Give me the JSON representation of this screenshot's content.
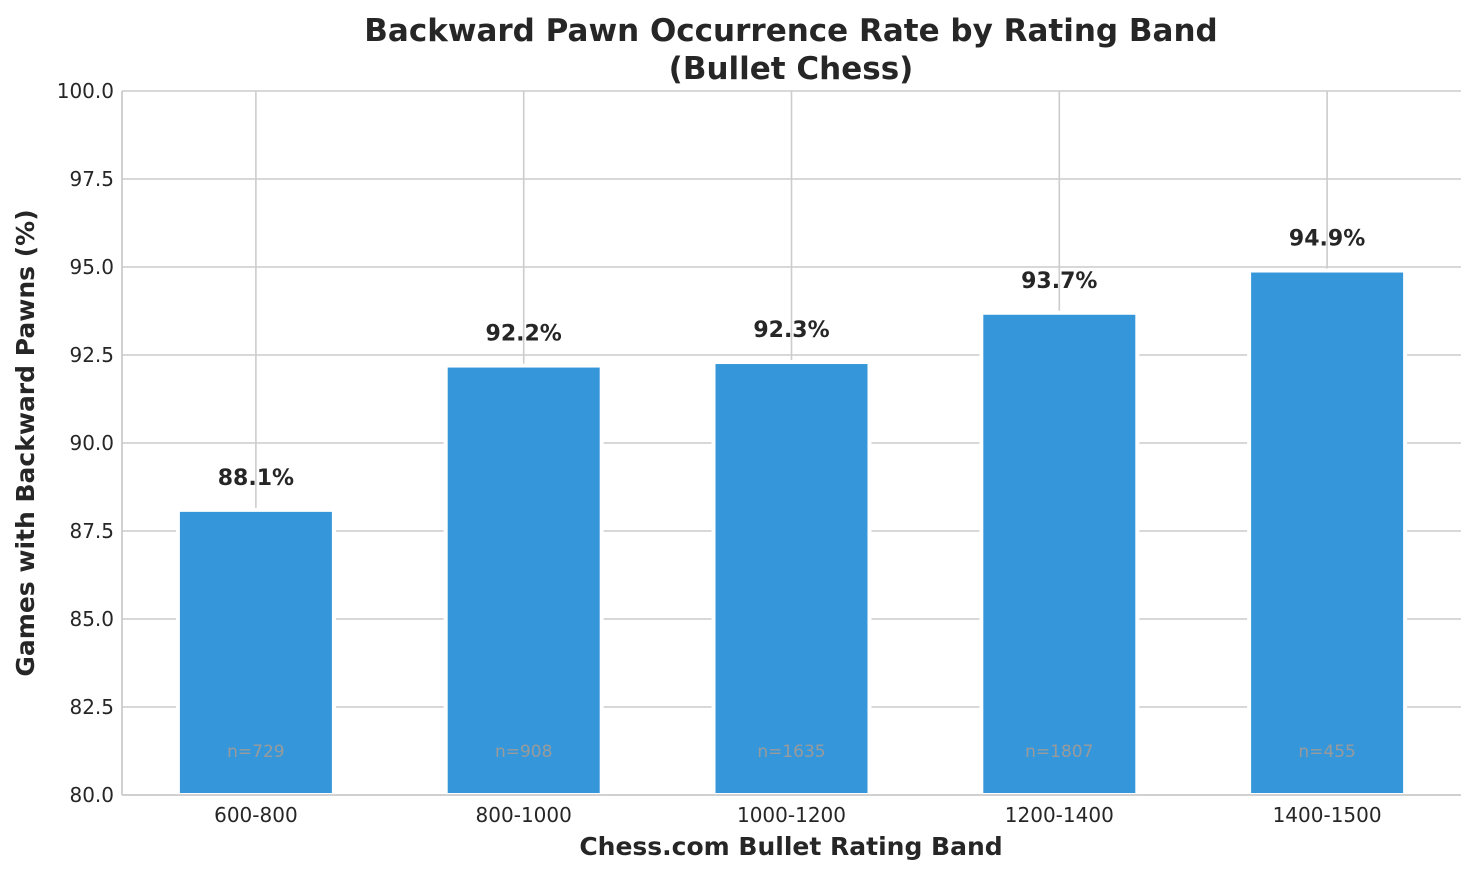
{
  "chart_data": {
    "type": "bar",
    "title_line1": "Backward Pawn Occurrence Rate by Rating Band",
    "title_line2": "(Bullet Chess)",
    "xlabel": "Chess.com Bullet Rating Band",
    "ylabel": "Games with Backward Pawns (%)",
    "categories": [
      "600-800",
      "800-1000",
      "1000-1200",
      "1200-1400",
      "1400-1500"
    ],
    "values": [
      88.1,
      92.2,
      92.3,
      93.7,
      94.9
    ],
    "data_labels": [
      "88.1%",
      "92.2%",
      "92.3%",
      "93.7%",
      "94.9%"
    ],
    "sample_sizes": [
      "n=729",
      "n=908",
      "n=1635",
      "n=1807",
      "n=455"
    ],
    "ylim": [
      80,
      100
    ],
    "yticks": [
      "80.0",
      "82.5",
      "85.0",
      "87.5",
      "90.0",
      "92.5",
      "95.0",
      "97.5",
      "100.0"
    ],
    "grid": true,
    "colors": {
      "bar": "#3597da",
      "grid": "#cccccc",
      "text": "#262626",
      "n_label": "#9a9a9a"
    }
  }
}
